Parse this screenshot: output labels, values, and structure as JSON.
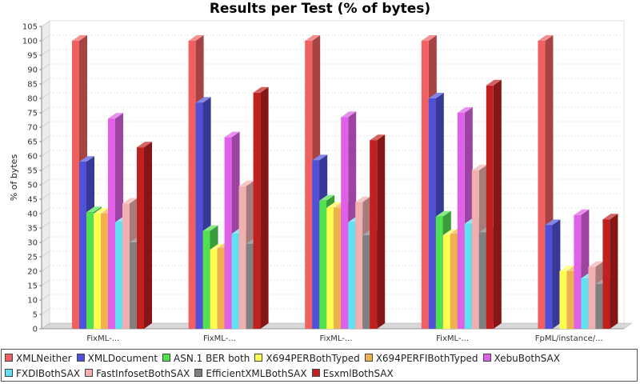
{
  "chart_data": {
    "type": "bar",
    "title": "Results per Test (% of bytes)",
    "ylabel": "% of bytes",
    "xlabel": "",
    "ylim": [
      0,
      105
    ],
    "yticks": [
      0,
      5,
      10,
      15,
      20,
      25,
      30,
      35,
      40,
      45,
      50,
      55,
      60,
      65,
      70,
      75,
      80,
      85,
      90,
      95,
      100,
      105
    ],
    "categories": [
      "FixML-...",
      "FixML-...",
      "FixML-...",
      "FixML-...",
      "FpML/instance/..."
    ],
    "legend_position": "bottom",
    "series": [
      {
        "name": "XMLNeither",
        "color": "#f06060",
        "values": [
          100,
          100,
          100,
          100,
          100
        ]
      },
      {
        "name": "XMLDocument",
        "color": "#5050d8",
        "values": [
          58,
          78.5,
          58.5,
          80,
          36
        ]
      },
      {
        "name": "ASN.1 BER both",
        "color": "#50e050",
        "values": [
          40.5,
          34,
          44.5,
          39,
          0
        ]
      },
      {
        "name": "X694PERBothTyped",
        "color": "#ffff50",
        "values": [
          40,
          27.5,
          42,
          32.5,
          20
        ]
      },
      {
        "name": "X694PERFIBothTyped",
        "color": "#f0b050",
        "values": [
          40,
          28,
          42,
          33,
          20
        ]
      },
      {
        "name": "XebuBothSAX",
        "color": "#e060e8",
        "values": [
          73,
          66.5,
          73.5,
          75,
          39.5
        ]
      },
      {
        "name": "FXDIBothSAX",
        "color": "#60e0f0",
        "values": [
          37,
          33,
          37,
          36.5,
          17.5
        ]
      },
      {
        "name": "FastInfosetBothSAX",
        "color": "#f0b0b0",
        "values": [
          43.5,
          49.5,
          44,
          55,
          21.5
        ]
      },
      {
        "name": "EfficientXMLBothSAX",
        "color": "#808080",
        "values": [
          30,
          29.5,
          32.5,
          33.5,
          15.5
        ]
      },
      {
        "name": "EsxmlBothSAX",
        "color": "#c02020",
        "values": [
          63,
          82,
          65.5,
          84.5,
          38
        ]
      }
    ]
  }
}
